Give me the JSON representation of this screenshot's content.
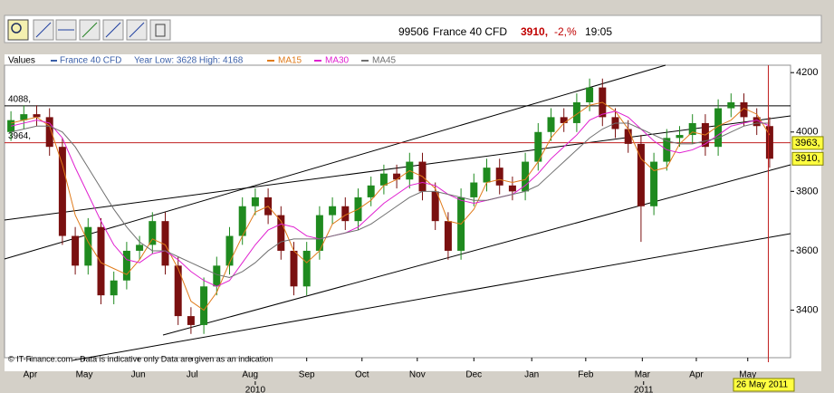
{
  "header": {
    "code": "99506",
    "name": "France 40 CFD",
    "price": "3910,",
    "change": "-2,%",
    "time": "19:05"
  },
  "chart_data": {
    "type": "candlestick",
    "label": "Values",
    "name": "France 40 CFD",
    "name_color": "#3a5fa8",
    "legend_note": "Year Low: 3628 High: 4168",
    "open": [
      4000,
      4040,
      4060,
      4050,
      3950,
      3650,
      3550,
      3680,
      3450,
      3500,
      3600,
      3620,
      3700,
      3550,
      3380,
      3350,
      3480,
      3550,
      3650,
      3750,
      3780,
      3720,
      3600,
      3480,
      3600,
      3720,
      3750,
      3700,
      3780,
      3820,
      3860,
      3840,
      3900,
      3800,
      3700,
      3600,
      3780,
      3830,
      3880,
      3820,
      3800,
      3900,
      4000,
      4050,
      4030,
      4100,
      4150,
      4050,
      4010,
      3960,
      3750,
      3900,
      3980,
      3990,
      4030,
      3950,
      4080,
      4100,
      4050,
      4020
    ],
    "high": [
      4070,
      4090,
      4090,
      4080,
      3980,
      3680,
      3710,
      3710,
      3530,
      3630,
      3650,
      3730,
      3730,
      3580,
      3410,
      3510,
      3580,
      3680,
      3780,
      3810,
      3810,
      3750,
      3630,
      3630,
      3750,
      3780,
      3780,
      3810,
      3850,
      3890,
      3890,
      3930,
      3930,
      3830,
      3730,
      3810,
      3860,
      3910,
      3910,
      3850,
      3930,
      4030,
      4080,
      4080,
      4130,
      4180,
      4180,
      4080,
      4040,
      3990,
      3930,
      4010,
      4020,
      4060,
      4060,
      4110,
      4130,
      4130,
      4080,
      4050
    ],
    "low": [
      3970,
      4010,
      4020,
      3920,
      3620,
      3520,
      3520,
      3420,
      3420,
      3470,
      3570,
      3590,
      3520,
      3350,
      3320,
      3320,
      3450,
      3520,
      3620,
      3720,
      3690,
      3570,
      3450,
      3450,
      3570,
      3690,
      3670,
      3670,
      3750,
      3790,
      3810,
      3810,
      3770,
      3670,
      3570,
      3570,
      3750,
      3800,
      3790,
      3770,
      3770,
      3870,
      3970,
      4000,
      4000,
      4070,
      4020,
      3980,
      3930,
      3630,
      3720,
      3870,
      3950,
      3960,
      3920,
      3920,
      4050,
      4020,
      3990,
      3880
    ],
    "close": [
      4040,
      4060,
      4050,
      3950,
      3650,
      3550,
      3680,
      3450,
      3500,
      3600,
      3620,
      3700,
      3550,
      3380,
      3350,
      3480,
      3550,
      3650,
      3750,
      3780,
      3720,
      3600,
      3480,
      3600,
      3720,
      3750,
      3700,
      3780,
      3820,
      3860,
      3840,
      3900,
      3800,
      3700,
      3600,
      3780,
      3830,
      3880,
      3820,
      3800,
      3900,
      4000,
      4050,
      4030,
      4100,
      4150,
      4050,
      4010,
      3960,
      3750,
      3900,
      3980,
      3990,
      4030,
      3950,
      4080,
      4100,
      4050,
      4020,
      3910
    ],
    "up_color": "#1f8a1f",
    "down_color": "#7a1010",
    "series": [
      {
        "name": "MA15",
        "color": "#e07b1a",
        "values": [
          4030,
          4040,
          4050,
          4020,
          3890,
          3720,
          3630,
          3560,
          3540,
          3520,
          3570,
          3640,
          3620,
          3540,
          3430,
          3400,
          3460,
          3560,
          3650,
          3730,
          3750,
          3700,
          3600,
          3560,
          3600,
          3690,
          3720,
          3740,
          3770,
          3820,
          3840,
          3870,
          3850,
          3810,
          3700,
          3690,
          3740,
          3830,
          3840,
          3830,
          3840,
          3900,
          3980,
          4030,
          4060,
          4090,
          4100,
          4070,
          4010,
          3910,
          3870,
          3880,
          3960,
          4000,
          3990,
          4020,
          4040,
          4080,
          4060,
          3990
        ]
      },
      {
        "name": "MA30",
        "color": "#e020d0",
        "values": [
          4020,
          4030,
          4040,
          4030,
          3980,
          3880,
          3790,
          3700,
          3620,
          3570,
          3560,
          3590,
          3600,
          3570,
          3530,
          3500,
          3480,
          3500,
          3560,
          3620,
          3670,
          3690,
          3680,
          3650,
          3640,
          3650,
          3660,
          3680,
          3720,
          3760,
          3790,
          3820,
          3830,
          3820,
          3790,
          3770,
          3760,
          3770,
          3780,
          3790,
          3820,
          3860,
          3910,
          3950,
          3990,
          4040,
          4060,
          4070,
          4050,
          4010,
          3970,
          3940,
          3930,
          3940,
          3960,
          3990,
          4020,
          4030,
          4040,
          4020
        ]
      },
      {
        "name": "MA45",
        "color": "#707070",
        "values": [
          4000,
          4010,
          4020,
          4020,
          4000,
          3950,
          3880,
          3810,
          3740,
          3680,
          3630,
          3600,
          3600,
          3580,
          3560,
          3540,
          3520,
          3510,
          3530,
          3560,
          3600,
          3630,
          3640,
          3640,
          3640,
          3650,
          3660,
          3670,
          3690,
          3720,
          3750,
          3780,
          3800,
          3800,
          3790,
          3780,
          3770,
          3770,
          3780,
          3790,
          3800,
          3820,
          3860,
          3900,
          3940,
          3980,
          4010,
          4030,
          4030,
          4010,
          3990,
          3970,
          3960,
          3960,
          3970,
          3980,
          4000,
          4020,
          4030,
          4030
        ]
      }
    ],
    "xlim": [
      0,
      60
    ],
    "xticks": [
      {
        "value": 2.0,
        "label": "Apr"
      },
      {
        "value": 6.2,
        "label": "May"
      },
      {
        "value": 10.4,
        "label": "Jun"
      },
      {
        "value": 14.6,
        "label": "Jul"
      },
      {
        "value": 19.1,
        "label": "Aug"
      },
      {
        "value": 23.5,
        "label": "Sep"
      },
      {
        "value": 27.8,
        "label": "Oct"
      },
      {
        "value": 32.1,
        "label": "Nov"
      },
      {
        "value": 36.5,
        "label": "Dec"
      },
      {
        "value": 41.0,
        "label": "Jan"
      },
      {
        "value": 45.2,
        "label": "Feb"
      },
      {
        "value": 49.6,
        "label": "Mar"
      },
      {
        "value": 53.8,
        "label": "Apr"
      },
      {
        "value": 57.8,
        "label": "May"
      }
    ],
    "year_ticks": [
      {
        "value": 19.5,
        "label": "2010"
      },
      {
        "value": 49.7,
        "label": "2011"
      }
    ],
    "ylim": [
      3240,
      4225
    ],
    "yticks": [
      3400,
      3600,
      3800,
      4000,
      4200
    ],
    "reference_lines": [
      {
        "value": 4088,
        "label": "4088,",
        "color": "#000000"
      },
      {
        "value": 3964,
        "label": "3964,",
        "color": "#c02020"
      }
    ],
    "price_labels": [
      {
        "value": 3963,
        "label": "3963,"
      },
      {
        "value": 3910,
        "label": "3910,"
      }
    ],
    "cursor": {
      "value": 59.4,
      "label": "26 May 2011"
    },
    "note": "© IT-Finance.com - Data is indicative only Data are given as an indication"
  }
}
